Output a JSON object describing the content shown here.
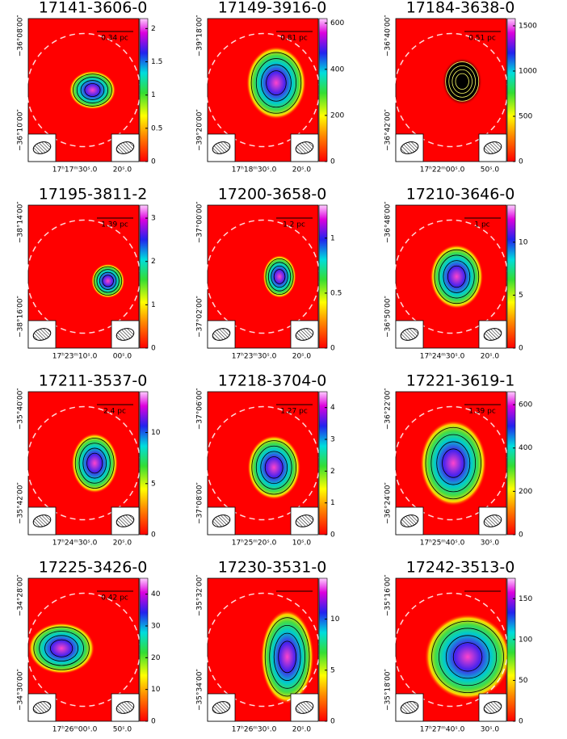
{
  "panels": [
    {
      "title": "17141-3606-0",
      "scale": "0.34 pc",
      "cbar_lim": [
        0,
        2.15
      ],
      "cbar_ticks": [
        0,
        0.5,
        1,
        1.5,
        2
      ],
      "dec": [
        "−36°08′00″",
        "−36°10′00″"
      ],
      "ra": [
        "17ʰ17ᵐ30ˢ.0",
        "20ˢ.0"
      ]
    },
    {
      "title": "17149-3916-0",
      "scale": "0.81 pc",
      "cbar_lim": [
        0,
        620
      ],
      "cbar_ticks": [
        0,
        200,
        400,
        600
      ],
      "dec": [
        "−39°18′00″",
        "−39°20′00″"
      ],
      "ra": [
        "17ʰ18ᵐ30ˢ.0",
        "20ˢ.0"
      ]
    },
    {
      "title": "17184-3638-0",
      "scale": "0.51 pc",
      "cbar_lim": [
        0,
        1580
      ],
      "cbar_ticks": [
        0,
        500,
        1000,
        1500
      ],
      "dec": [
        "−36°40′00″",
        "−36°42′00″"
      ],
      "ra": [
        "17ʰ22ᵐ00ˢ.0",
        "50ˢ.0"
      ]
    },
    {
      "title": "17195-3811-2",
      "scale": "1.39 pc",
      "cbar_lim": [
        0,
        3.3
      ],
      "cbar_ticks": [
        0,
        1,
        2,
        3
      ],
      "dec": [
        "−38°14′00″",
        "−38°16′00″"
      ],
      "ra": [
        "17ʰ23ᵐ10ˢ.0",
        "00ˢ.0"
      ]
    },
    {
      "title": "17200-3658-0",
      "scale": "1.2 pc",
      "cbar_lim": [
        0,
        1.3
      ],
      "cbar_ticks": [
        0,
        0.5,
        1
      ],
      "dec": [
        "−37°00′00″",
        "−37°02′00″"
      ],
      "ra": [
        "17ʰ23ᵐ30ˢ.0",
        "20ˢ.0"
      ]
    },
    {
      "title": "17210-3646-0",
      "scale": "1 pc",
      "cbar_lim": [
        0,
        13.5
      ],
      "cbar_ticks": [
        0,
        5,
        10
      ],
      "dec": [
        "−36°48′00″",
        "−36°50′00″"
      ],
      "ra": [
        "17ʰ24ᵐ30ˢ.0",
        "20ˢ.0"
      ]
    },
    {
      "title": "17211-3537-0",
      "scale": "2.4 pc",
      "cbar_lim": [
        0,
        14
      ],
      "cbar_ticks": [
        0,
        5,
        10
      ],
      "dec": [
        "−35°40′00″",
        "−35°42′00″"
      ],
      "ra": [
        "17ʰ24ᵐ30ˢ.0",
        "20ˢ.0"
      ]
    },
    {
      "title": "17218-3704-0",
      "scale": "1.27 pc",
      "cbar_lim": [
        0,
        4.5
      ],
      "cbar_ticks": [
        0,
        1,
        2,
        3,
        4
      ],
      "dec": [
        "−37°06′00″",
        "−37°08′00″"
      ],
      "ra": [
        "17ʰ25ᵐ20ˢ.0",
        "10ˢ.0"
      ]
    },
    {
      "title": "17221-3619-1",
      "scale": "1.39 pc",
      "cbar_lim": [
        0,
        660
      ],
      "cbar_ticks": [
        0,
        200,
        400,
        600
      ],
      "dec": [
        "−36°22′00″",
        "−36°24′00″"
      ],
      "ra": [
        "17ʰ25ᵐ40ˢ.0",
        "30ˢ.0"
      ]
    },
    {
      "title": "17225-3426-0",
      "scale": "0.42 pc",
      "cbar_lim": [
        0,
        45
      ],
      "cbar_ticks": [
        0,
        10,
        20,
        30,
        40
      ],
      "dec": [
        "−34°28′00″",
        "−34°30′00″"
      ],
      "ra": [
        "17ʰ26ᵐ00ˢ.0",
        "50ˢ.0"
      ]
    },
    {
      "title": "17230-3531-0",
      "cbar_lim": [
        0,
        14
      ],
      "cbar_ticks": [
        0,
        5,
        10
      ],
      "dec": [
        "−35°32′00″",
        "−35°34′00″"
      ],
      "ra": [
        "17ʰ26ᵐ30ˢ.0",
        "20ˢ.0"
      ]
    },
    {
      "title": "17242-3513-0",
      "cbar_lim": [
        0,
        175
      ],
      "cbar_ticks": [
        0,
        50,
        100,
        150
      ],
      "dec": [
        "−35°16′00″",
        "−35°18′00″"
      ],
      "ra": [
        "17ʰ27ᵐ40ˢ.0",
        "30ˢ.0"
      ]
    }
  ]
}
